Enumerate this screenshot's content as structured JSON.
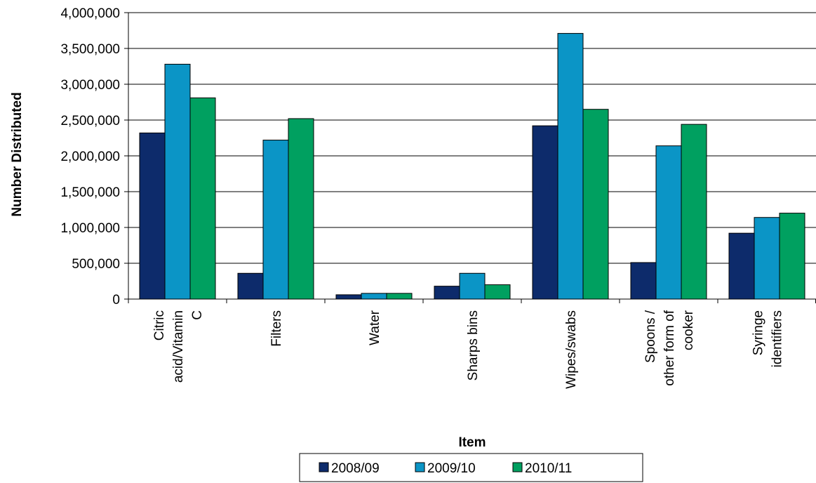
{
  "chart_data": {
    "type": "bar",
    "title": "",
    "xlabel": "Item",
    "ylabel": "Number Distributed",
    "ylim": [
      0,
      4000000
    ],
    "yticks": [
      0,
      500000,
      1000000,
      1500000,
      2000000,
      2500000,
      3000000,
      3500000,
      4000000
    ],
    "ytick_labels": [
      "0",
      "500,000",
      "1,000,000",
      "1,500,000",
      "2,000,000",
      "2,500,000",
      "3,000,000",
      "3,500,000",
      "4,000,000"
    ],
    "grid": "horizontal",
    "legend_position": "bottom",
    "categories": [
      "Citric acid/Vitamin C",
      "Filters",
      "Water",
      "Sharps bins",
      "Wipes/swabs",
      "Spoons / other form of cooker",
      "Syringe identifiers"
    ],
    "category_label_lines": [
      [
        "Citric",
        "acid/Vitamin",
        "C"
      ],
      [
        "Filters"
      ],
      [
        "Water"
      ],
      [
        "Sharps bins"
      ],
      [
        "Wipes/swabs"
      ],
      [
        "Spoons /",
        "other form of",
        "cooker"
      ],
      [
        "Syringe",
        "identifiers"
      ]
    ],
    "series": [
      {
        "name": "2008/09",
        "color": "#0d2b6b",
        "values": [
          2320000,
          360000,
          60000,
          180000,
          2420000,
          510000,
          920000
        ]
      },
      {
        "name": "2009/10",
        "color": "#0b95c6",
        "values": [
          3280000,
          2220000,
          80000,
          360000,
          3710000,
          2140000,
          1140000
        ]
      },
      {
        "name": "2010/11",
        "color": "#00a060",
        "values": [
          2810000,
          2520000,
          80000,
          200000,
          2650000,
          2440000,
          1200000
        ]
      }
    ]
  }
}
